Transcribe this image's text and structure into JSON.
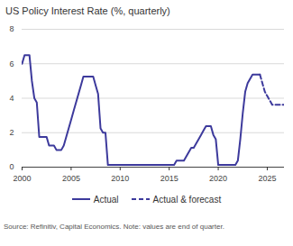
{
  "chart_data": {
    "type": "line",
    "title": "US Policy Interest Rate (%, quarterly)",
    "x": [
      2000,
      2000.25,
      2000.5,
      2000.75,
      2001,
      2001.25,
      2001.5,
      2001.75,
      2002,
      2002.25,
      2002.5,
      2002.75,
      2003,
      2003.25,
      2003.5,
      2003.75,
      2004,
      2004.25,
      2004.5,
      2004.75,
      2005,
      2005.25,
      2005.5,
      2005.75,
      2006,
      2006.25,
      2006.5,
      2006.75,
      2007,
      2007.25,
      2007.5,
      2007.75,
      2008,
      2008.25,
      2008.5,
      2008.75,
      2009,
      2009.25,
      2009.5,
      2009.75,
      2010,
      2010.25,
      2010.5,
      2010.75,
      2011,
      2011.25,
      2011.5,
      2011.75,
      2012,
      2012.25,
      2012.5,
      2012.75,
      2013,
      2013.25,
      2013.5,
      2013.75,
      2014,
      2014.25,
      2014.5,
      2014.75,
      2015,
      2015.25,
      2015.5,
      2015.75,
      2016,
      2016.25,
      2016.5,
      2016.75,
      2017,
      2017.25,
      2017.5,
      2017.75,
      2018,
      2018.25,
      2018.5,
      2018.75,
      2019,
      2019.25,
      2019.5,
      2019.75,
      2020,
      2020.25,
      2020.5,
      2020.75,
      2021,
      2021.25,
      2021.5,
      2021.75,
      2022,
      2022.25,
      2022.5,
      2022.75,
      2023,
      2023.25,
      2023.5,
      2023.75,
      2024,
      2024.25,
      2024.5,
      2024.75,
      2025,
      2025.25,
      2025.5,
      2025.75,
      2026,
      2026.25,
      2026.5,
      2026.75
    ],
    "series": [
      {
        "name": "Actual",
        "color": "#3d3a9c",
        "line_style": "solid",
        "values": [
          6.0,
          6.5,
          6.5,
          6.5,
          5.0,
          4.0,
          3.75,
          1.75,
          1.75,
          1.75,
          1.75,
          1.25,
          1.25,
          1.25,
          1.0,
          1.0,
          1.0,
          1.25,
          1.75,
          2.25,
          2.75,
          3.25,
          3.75,
          4.25,
          4.75,
          5.25,
          5.25,
          5.25,
          5.25,
          5.25,
          4.75,
          4.25,
          2.25,
          2.0,
          2.0,
          0.125,
          0.125,
          0.125,
          0.125,
          0.125,
          0.125,
          0.125,
          0.125,
          0.125,
          0.125,
          0.125,
          0.125,
          0.125,
          0.125,
          0.125,
          0.125,
          0.125,
          0.125,
          0.125,
          0.125,
          0.125,
          0.125,
          0.125,
          0.125,
          0.125,
          0.125,
          0.125,
          0.125,
          0.375,
          0.375,
          0.375,
          0.375,
          0.625,
          0.875,
          1.125,
          1.125,
          1.375,
          1.625,
          1.875,
          2.125,
          2.375,
          2.375,
          2.375,
          1.875,
          1.625,
          0.125,
          0.125,
          0.125,
          0.125,
          0.125,
          0.125,
          0.125,
          0.125,
          0.375,
          1.625,
          3.125,
          4.375,
          4.875,
          5.125,
          5.375,
          5.375,
          5.375,
          5.375,
          null,
          null,
          null,
          null,
          null,
          null,
          null,
          null,
          null,
          null
        ]
      },
      {
        "name": "Actual & forecast",
        "color": "#3d3a9c",
        "line_style": "dashed",
        "values": [
          null,
          null,
          null,
          null,
          null,
          null,
          null,
          null,
          null,
          null,
          null,
          null,
          null,
          null,
          null,
          null,
          null,
          null,
          null,
          null,
          null,
          null,
          null,
          null,
          null,
          null,
          null,
          null,
          null,
          null,
          null,
          null,
          null,
          null,
          null,
          null,
          null,
          null,
          null,
          null,
          null,
          null,
          null,
          null,
          null,
          null,
          null,
          null,
          null,
          null,
          null,
          null,
          null,
          null,
          null,
          null,
          null,
          null,
          null,
          null,
          null,
          null,
          null,
          null,
          null,
          null,
          null,
          null,
          null,
          null,
          null,
          null,
          null,
          null,
          null,
          null,
          null,
          null,
          null,
          null,
          null,
          null,
          null,
          null,
          null,
          null,
          null,
          null,
          null,
          null,
          null,
          null,
          null,
          null,
          null,
          null,
          null,
          5.375,
          4.875,
          4.375,
          4.125,
          3.875,
          3.625,
          3.625,
          3.625,
          3.625,
          3.625,
          3.625
        ]
      }
    ],
    "xlim": [
      2000,
      2026.75
    ],
    "xticks": [
      2000,
      2005,
      2010,
      2015,
      2020,
      2025
    ],
    "ylim": [
      0,
      8
    ],
    "yticks": [
      0,
      2,
      4,
      6,
      8
    ],
    "grid": true,
    "caption": "Source: Refinitiv, Capital Economics. Note: values are end of quarter."
  }
}
